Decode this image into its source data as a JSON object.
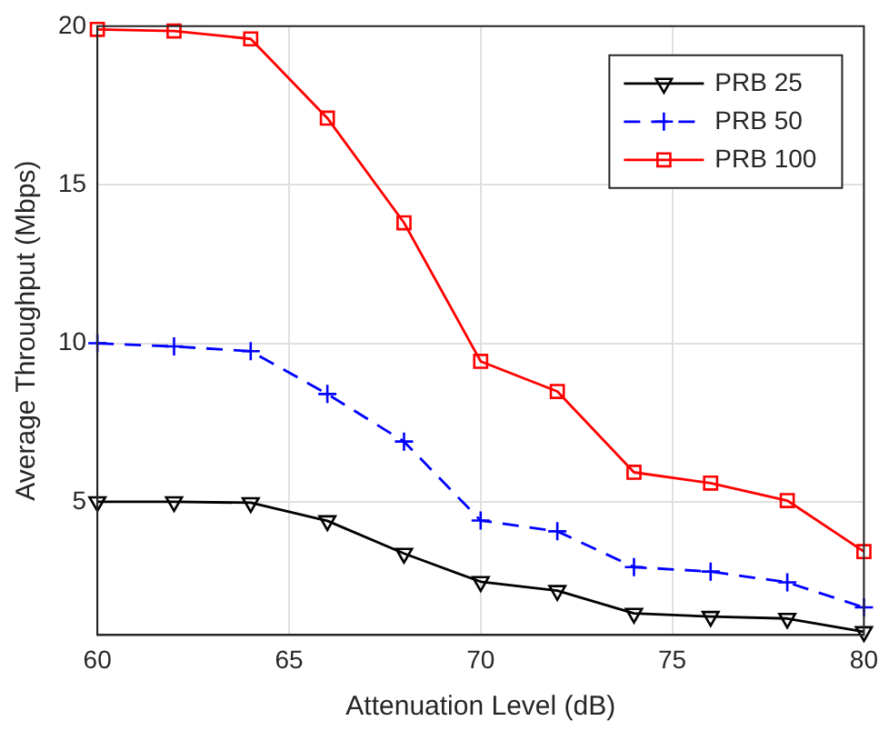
{
  "chart_data": {
    "type": "line",
    "xlabel": "Attenuation Level (dB)",
    "ylabel": "Average Throughput (Mbps)",
    "x": [
      60,
      62,
      64,
      66,
      68,
      70,
      72,
      74,
      76,
      78,
      80
    ],
    "series": [
      {
        "name": "PRB 25",
        "color": "#000000",
        "marker": "triangle",
        "line_style": "solid",
        "values": [
          5.0,
          5.0,
          4.97,
          4.4,
          3.37,
          2.48,
          2.2,
          1.48,
          1.38,
          1.32,
          0.9
        ]
      },
      {
        "name": "PRB 50",
        "color": "#0000ff",
        "marker": "cross",
        "line_style": "dashed",
        "values": [
          10.0,
          9.9,
          9.75,
          8.4,
          6.9,
          4.41,
          4.07,
          2.94,
          2.8,
          2.46,
          1.67
        ]
      },
      {
        "name": "PRB 100",
        "color": "#ff0000",
        "marker": "square",
        "line_style": "solid",
        "values": [
          19.9,
          19.85,
          19.6,
          17.1,
          13.8,
          9.43,
          8.48,
          5.93,
          5.59,
          5.04,
          3.43
        ]
      }
    ],
    "xlim": [
      60,
      80
    ],
    "xticks": [
      60,
      65,
      70,
      75,
      80
    ],
    "ylim": [
      0.8,
      20
    ],
    "yticks": [
      5,
      10,
      15,
      20
    ],
    "grid": true,
    "legend": "top right"
  }
}
